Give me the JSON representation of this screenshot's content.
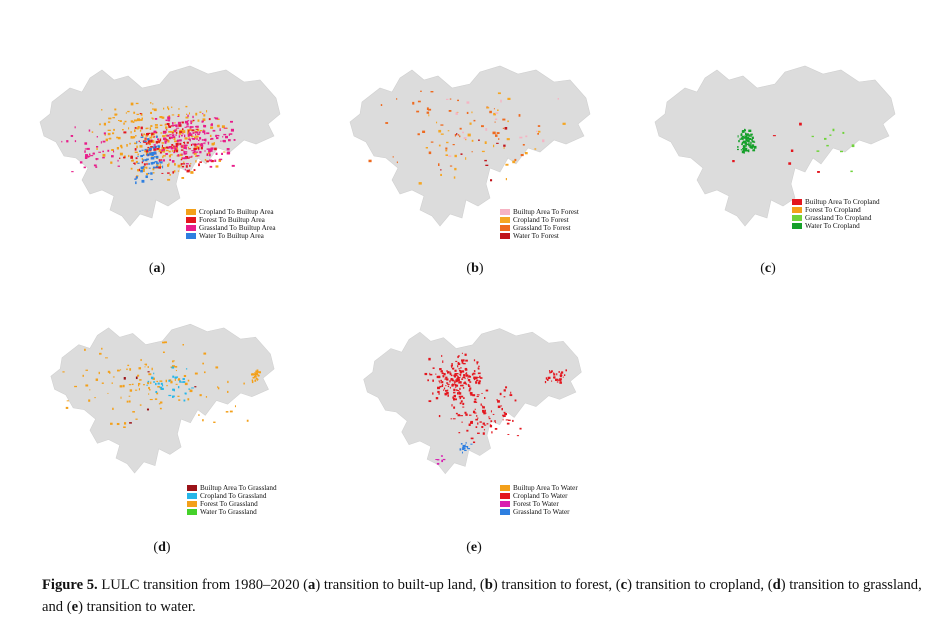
{
  "panels": [
    {
      "id": "a",
      "label": "a",
      "legend": [
        {
          "name": "Cropland To Builtup Area",
          "color": "#f3a01a"
        },
        {
          "name": "Forest To Builtup Area",
          "color": "#e3161e"
        },
        {
          "name": "Grassland To Builtup Area",
          "color": "#e81d8a"
        },
        {
          "name": "Water To Builtup Area",
          "color": "#2e7fe0"
        }
      ]
    },
    {
      "id": "b",
      "label": "b",
      "legend": [
        {
          "name": "Builtup Area To Forest",
          "color": "#f6b3c3"
        },
        {
          "name": "Cropland To Forest",
          "color": "#f5a623"
        },
        {
          "name": "Grassland To Forest",
          "color": "#ee6a1f"
        },
        {
          "name": "Water To Forest",
          "color": "#c0141b"
        }
      ]
    },
    {
      "id": "c",
      "label": "c",
      "legend": [
        {
          "name": "Builtup Area To Cropland",
          "color": "#e3161e"
        },
        {
          "name": "Forest To Cropland",
          "color": "#f3a01a"
        },
        {
          "name": "Grassland To Cropland",
          "color": "#6fd33a"
        },
        {
          "name": "Water To Cropland",
          "color": "#16a02a"
        }
      ]
    },
    {
      "id": "d",
      "label": "d",
      "legend": [
        {
          "name": "Builtup Area To Grassland",
          "color": "#9b1218"
        },
        {
          "name": "Cropland To Grassland",
          "color": "#27b6e8"
        },
        {
          "name": "Forest To Grassland",
          "color": "#f3a01a"
        },
        {
          "name": "Water To Grassland",
          "color": "#45d12a"
        }
      ]
    },
    {
      "id": "e",
      "label": "e",
      "legend": [
        {
          "name": "Builtup Area To Water",
          "color": "#f3a01a"
        },
        {
          "name": "Cropland To Water",
          "color": "#e3161e"
        },
        {
          "name": "Forest To Water",
          "color": "#d81fb0"
        },
        {
          "name": "Grassland To Water",
          "color": "#2e7fe0"
        }
      ]
    }
  ],
  "map_fill": "#dcdcdc",
  "caption": {
    "figure": "Figure 5.",
    "parts": [
      " LULC transition from 1980–2020 (",
      "a",
      ") transition to built-up land, (",
      "b",
      ") transition to forest, (",
      "c",
      ") transition to cropland, (",
      "d",
      ") transition to grassland, and (",
      "e",
      ") transition to water."
    ]
  }
}
